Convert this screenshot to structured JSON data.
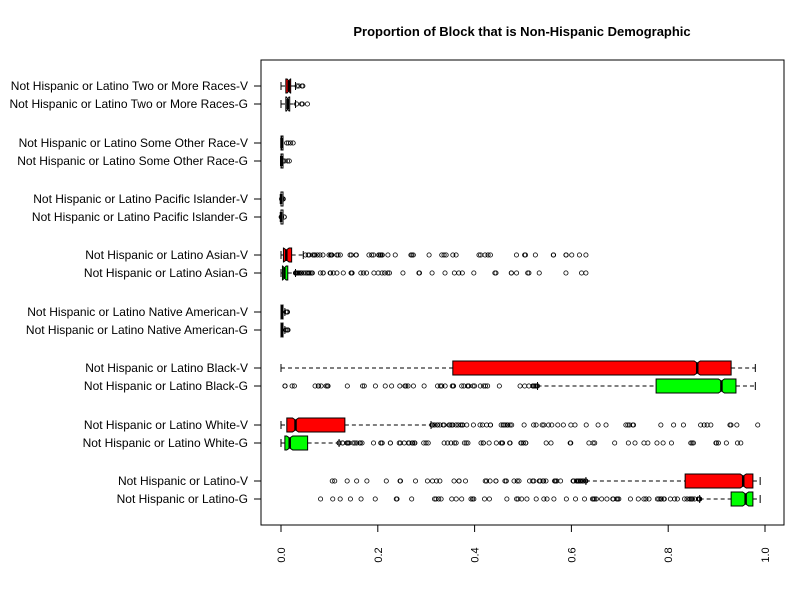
{
  "chart_data": {
    "type": "boxplot",
    "orientation": "horizontal",
    "title": "Proportion of Block that is Non-Hispanic Demographic",
    "xlim": [
      0,
      1
    ],
    "xticks": [
      "0.0",
      "0.2",
      "0.4",
      "0.6",
      "0.8",
      "1.0"
    ],
    "colors": {
      "V": "#ff0000",
      "G": "#00ff00",
      "uncolored": "#ffffff"
    },
    "categories": [
      {
        "label": "Not Hispanic or Latino Two or More Races-V",
        "color": "#ff0000",
        "q1": 0.01,
        "median": 0.016,
        "q3": 0.02,
        "whisker_low": 0.0,
        "whisker_high": 0.03,
        "outlier_range": [
          0.03,
          0.057
        ]
      },
      {
        "label": "Not Hispanic or Latino Two or More Races-G",
        "color": "#ffffff",
        "q1": 0.01,
        "median": 0.014,
        "q3": 0.018,
        "whisker_low": 0.0,
        "whisker_high": 0.03,
        "outlier_range": [
          0.03,
          0.058
        ]
      },
      {
        "label": "Not Hispanic or Latino Some Other Race-V",
        "color": "#ffffff",
        "q1": 0.0,
        "median": 0.001,
        "q3": 0.002,
        "whisker_low": 0.0,
        "whisker_high": 0.004,
        "outlier_range": [
          0.004,
          0.031
        ]
      },
      {
        "label": "Not Hispanic or Latino Some Other Race-G",
        "color": "#ffffff",
        "q1": 0.0,
        "median": 0.0005,
        "q3": 0.001,
        "whisker_low": 0.0,
        "whisker_high": 0.002,
        "outlier_range": [
          0.002,
          0.025
        ]
      },
      {
        "label": "Not Hispanic or Latino Pacific Islander-V",
        "color": "#ffffff",
        "q1": 0.0,
        "median": 0.0,
        "q3": 0.0,
        "whisker_low": 0.0,
        "whisker_high": 0.0,
        "outlier_range": [
          0.0,
          0.007
        ]
      },
      {
        "label": "Not Hispanic or Latino Pacific Islander-G",
        "color": "#ffffff",
        "q1": 0.0,
        "median": 0.0,
        "q3": 0.0,
        "whisker_low": 0.0,
        "whisker_high": 0.0,
        "outlier_range": [
          0.0,
          0.007
        ]
      },
      {
        "label": "Not Hispanic or Latino Asian-V",
        "color": "#ff0000",
        "q1": 0.005,
        "median": 0.011,
        "q3": 0.022,
        "whisker_low": 0.0,
        "whisker_high": 0.046,
        "outlier_range": [
          0.046,
          0.63
        ]
      },
      {
        "label": "Not Hispanic or Latino Asian-G",
        "color": "#00ff00",
        "q1": 0.003,
        "median": 0.007,
        "q3": 0.014,
        "whisker_low": 0.0,
        "whisker_high": 0.03,
        "outlier_range": [
          0.03,
          0.63
        ]
      },
      {
        "label": "Not Hispanic or Latino Native American-V",
        "color": "#ffffff",
        "q1": 0.0,
        "median": 0.002,
        "q3": 0.004,
        "whisker_low": 0.0,
        "whisker_high": 0.008,
        "outlier_range": [
          0.008,
          0.015
        ]
      },
      {
        "label": "Not Hispanic or Latino Native American-G",
        "color": "#ffffff",
        "q1": 0.0,
        "median": 0.002,
        "q3": 0.004,
        "whisker_low": 0.0,
        "whisker_high": 0.008,
        "outlier_range": [
          0.008,
          0.015
        ]
      },
      {
        "label": "Not Hispanic or Latino Black-V",
        "color": "#ff0000",
        "q1": 0.355,
        "median": 0.86,
        "q3": 0.93,
        "whisker_low": 0.0,
        "whisker_high": 0.98,
        "outlier_range": null
      },
      {
        "label": "Not Hispanic or Latino Black-G",
        "color": "#00ff00",
        "q1": 0.775,
        "median": 0.91,
        "q3": 0.94,
        "whisker_low": 0.53,
        "whisker_high": 0.98,
        "outlier_range": [
          0.0,
          0.53
        ]
      },
      {
        "label": "Not Hispanic or Latino White-V",
        "color": "#ff0000",
        "q1": 0.012,
        "median": 0.03,
        "q3": 0.132,
        "whisker_low": 0.0,
        "whisker_high": 0.31,
        "outlier_range": [
          0.31,
          0.985
        ]
      },
      {
        "label": "Not Hispanic or Latino White-G",
        "color": "#00ff00",
        "q1": 0.008,
        "median": 0.018,
        "q3": 0.055,
        "whisker_low": 0.0,
        "whisker_high": 0.12,
        "outlier_range": [
          0.12,
          0.95
        ]
      },
      {
        "label": "Not Hispanic or Latino-V",
        "color": "#ff0000",
        "q1": 0.835,
        "median": 0.955,
        "q3": 0.975,
        "whisker_low": 0.63,
        "whisker_high": 0.99,
        "outlier_range": [
          0.06,
          0.63
        ]
      },
      {
        "label": "Not Hispanic or Latino-G",
        "color": "#00ff00",
        "q1": 0.93,
        "median": 0.96,
        "q3": 0.975,
        "whisker_low": 0.865,
        "whisker_high": 0.99,
        "outlier_range": [
          0.08,
          0.865
        ]
      }
    ]
  }
}
